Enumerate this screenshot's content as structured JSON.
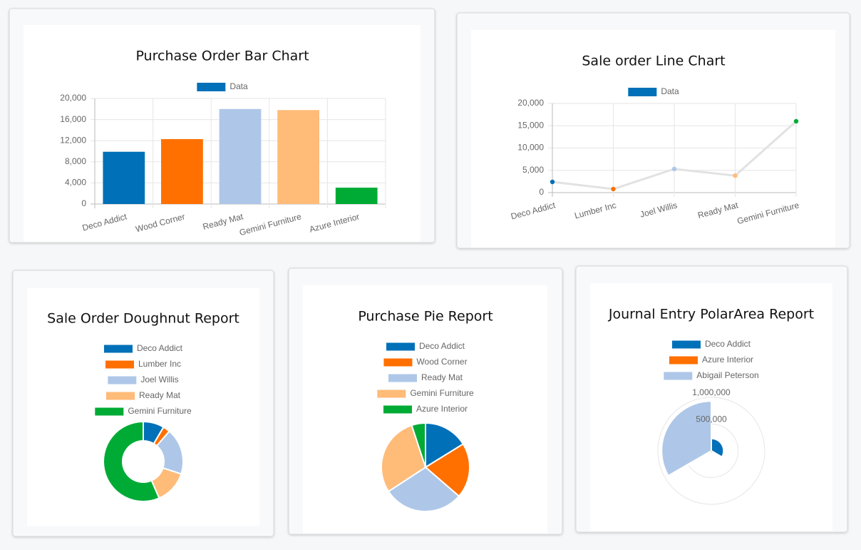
{
  "chart_data": [
    {
      "type": "bar",
      "title": "Purchase Order Bar Chart",
      "categories": [
        "Deco Addict",
        "Wood Corner",
        "Ready Mat",
        "Gemini Furniture",
        "Azure Interior"
      ],
      "series": [
        {
          "name": "Data",
          "values": [
            9900,
            12300,
            18000,
            17800,
            3100
          ],
          "colors": [
            "#0070b8",
            "#ff7000",
            "#aec7e8",
            "#ffbb78",
            "#00ab35"
          ]
        }
      ],
      "ylim": [
        0,
        20000
      ],
      "yticks": [
        0,
        {
          "value": 4000,
          "label": "4,000"
        },
        {
          "value": 8000,
          "label": "8,000"
        },
        {
          "value": 12000,
          "label": "12,000"
        },
        {
          "value": 16000,
          "label": "16,000"
        },
        {
          "value": 20000,
          "label": "20,000"
        }
      ],
      "grid": true,
      "legend": "top"
    },
    {
      "type": "line",
      "title": "Sale order Line Chart",
      "categories": [
        "Deco Addict",
        "Lumber Inc",
        "Joel Willis",
        "Ready Mat",
        "Gemini Furniture"
      ],
      "series": [
        {
          "name": "Data",
          "values": [
            2400,
            800,
            5300,
            3800,
            16000
          ],
          "color": "#e2e2e2",
          "point_colors": [
            "#0070b8",
            "#ff7000",
            "#aec7e8",
            "#ffbb78",
            "#00ab35"
          ]
        }
      ],
      "ylim": [
        0,
        20000
      ],
      "yticks": [
        0,
        {
          "value": 5000,
          "label": "5,000"
        },
        {
          "value": 10000,
          "label": "10,000"
        },
        {
          "value": 15000,
          "label": "15,000"
        },
        {
          "value": 20000,
          "label": "20,000"
        }
      ],
      "grid": true,
      "legend": "top"
    },
    {
      "type": "doughnut",
      "title": "Sale Order Doughnut Report",
      "categories": [
        "Deco Addict",
        "Lumber Inc",
        "Joel Willis",
        "Ready Mat",
        "Gemini Furniture"
      ],
      "values": [
        2400,
        800,
        5300,
        3800,
        16000
      ],
      "colors": [
        "#0070b8",
        "#ff7000",
        "#aec7e8",
        "#ffbb78",
        "#00ab35"
      ],
      "legend": "top"
    },
    {
      "type": "pie",
      "title": "Purchase Pie Report",
      "categories": [
        "Deco Addict",
        "Wood Corner",
        "Ready Mat",
        "Gemini Furniture",
        "Azure Interior"
      ],
      "values": [
        9900,
        12300,
        18000,
        17800,
        3100
      ],
      "colors": [
        "#0070b8",
        "#ff7000",
        "#aec7e8",
        "#ffbb78",
        "#00ab35"
      ],
      "legend": "top"
    },
    {
      "type": "polarArea",
      "title": "Journal Entry PolarArea Report",
      "categories": [
        "Deco Addict",
        "Azure Interior",
        "Abigail Peterson"
      ],
      "values": [
        230000,
        40000,
        930000
      ],
      "colors": [
        "#0070b8",
        "#ff7000",
        "#aec7e8"
      ],
      "rlim": [
        0,
        1000000
      ],
      "rticks": [
        {
          "value": 500000,
          "label": "500,000"
        },
        {
          "value": 1000000,
          "label": "1,000,000"
        }
      ],
      "legend": "top"
    }
  ]
}
